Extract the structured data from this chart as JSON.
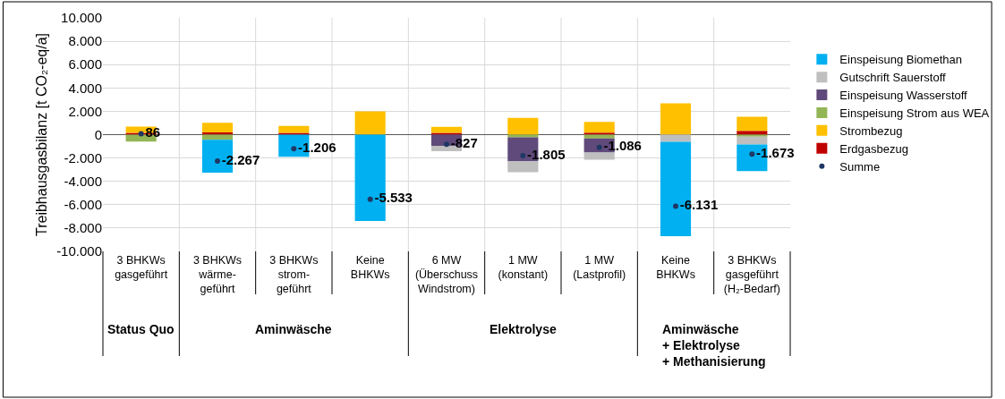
{
  "chart_data": {
    "type": "bar",
    "stacked": true,
    "ylabel": "Treibhausgasbilanz [t CO₂-eq/a]",
    "categories": [
      "3 BHKWs\ngasgeführt",
      "3 BHKWs\nwärme-\ngeführt",
      "3 BHKWs\nstrom-\ngeführt",
      "Keine\nBHKWs",
      "6 MW\n(Überschuss\nWindstrom)",
      "1 MW\n(konstant)",
      "1 MW\n(Lastprofil)",
      "Keine\nBHKWs",
      "3 BHKWs\ngasgeführt\n(H₂-Bedarf)"
    ],
    "series": [
      {
        "name": "Erdgasbezug",
        "color": "#c00000",
        "values": [
          150,
          200,
          150,
          0,
          150,
          0,
          180,
          0,
          330
        ]
      },
      {
        "name": "Strombezug",
        "color": "#ffc000",
        "values": [
          540,
          820,
          590,
          2000,
          520,
          1440,
          920,
          2690,
          1210
        ]
      },
      {
        "name": "Einspeisung Strom aus WEA",
        "color": "#92b555",
        "values": [
          -600,
          -440,
          0,
          0,
          0,
          -230,
          -330,
          0,
          -180
        ]
      },
      {
        "name": "Einspeisung Wasserstoff",
        "color": "#604a7b",
        "values": [
          0,
          0,
          0,
          0,
          -950,
          -2030,
          -1200,
          0,
          0
        ]
      },
      {
        "name": "Gutschrift Sauerstoff",
        "color": "#bfbfbf",
        "values": [
          0,
          0,
          0,
          0,
          -460,
          -950,
          -620,
          -620,
          -670
        ]
      },
      {
        "name": "Einspeisung Biomethan",
        "color": "#00b0f0",
        "values": [
          0,
          -2820,
          -1900,
          -7400,
          0,
          0,
          0,
          -8080,
          -2280
        ]
      },
      {
        "name": "Summe",
        "type": "scatter",
        "marker": "circle",
        "color": "#1f3864",
        "values": [
          86,
          -2267,
          -1206,
          -5533,
          -827,
          -1805,
          -1086,
          -6131,
          -1673
        ],
        "value_labels": [
          "86",
          "-2.267",
          "-1.206",
          "-5.533",
          "-827",
          "-1.805",
          "-1.086",
          "-6.131",
          "-1.673"
        ]
      }
    ],
    "ylim": [
      -10000,
      10000
    ],
    "yticks": [
      {
        "value": -10000,
        "label": "-10.000"
      },
      {
        "value": -8000,
        "label": "-8.000"
      },
      {
        "value": -6000,
        "label": "-6.000"
      },
      {
        "value": -4000,
        "label": "-4.000"
      },
      {
        "value": -2000,
        "label": "-2.000"
      },
      0,
      {
        "value": 2000,
        "label": "2.000"
      },
      {
        "value": 4000,
        "label": "4.000"
      },
      {
        "value": 6000,
        "label": "6.000"
      },
      {
        "value": 8000,
        "label": "8.000"
      },
      {
        "value": 10000,
        "label": "10.000"
      }
    ],
    "grid": true,
    "legend": "right",
    "annotations": [
      "Status Quo",
      "Aminwäsche",
      "Elektrolyse",
      "Aminwäsche\n+ Elektrolyse\n+ Methanisierung"
    ]
  }
}
